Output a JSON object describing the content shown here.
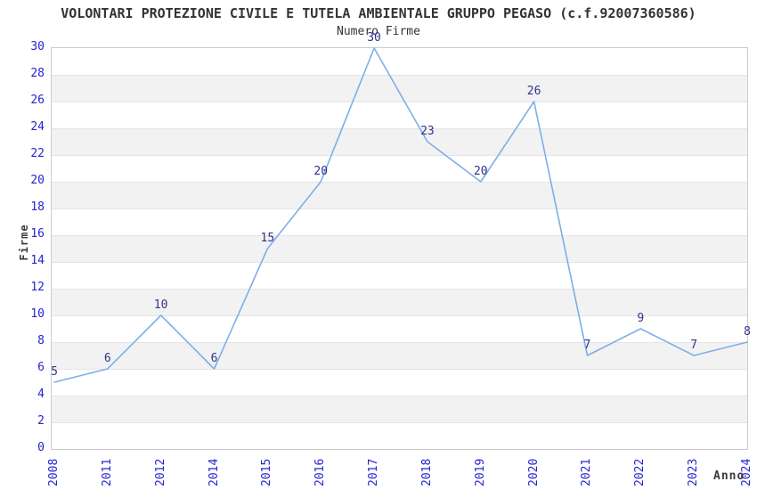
{
  "chart_data": {
    "type": "line",
    "title": "VOLONTARI PROTEZIONE CIVILE E TUTELA AMBIENTALE GRUPPO PEGASO (c.f.92007360586)",
    "subtitle": "Numero Firme",
    "xlabel": "Anno",
    "ylabel": "Firme",
    "categories": [
      "2008",
      "2011",
      "2012",
      "2014",
      "2015",
      "2016",
      "2017",
      "2018",
      "2019",
      "2020",
      "2021",
      "2022",
      "2023",
      "2024"
    ],
    "values": [
      5,
      6,
      10,
      6,
      15,
      20,
      30,
      23,
      20,
      26,
      7,
      9,
      7,
      8
    ],
    "ylim": [
      0,
      30
    ],
    "ytick_step": 2,
    "grid": "alternating horizontal gray bands every 2 units with light gridlines",
    "legend": "none",
    "point_labels_visible": true,
    "colors": {
      "line": "#7daee9",
      "axis_tick_label": "#2424cf",
      "point_label": "#32328c",
      "band_gray": "#f2f2f2",
      "gridline": "#e4e4e4",
      "plot_border": "#cccccc",
      "text": "#333333",
      "background": "#ffffff"
    }
  }
}
